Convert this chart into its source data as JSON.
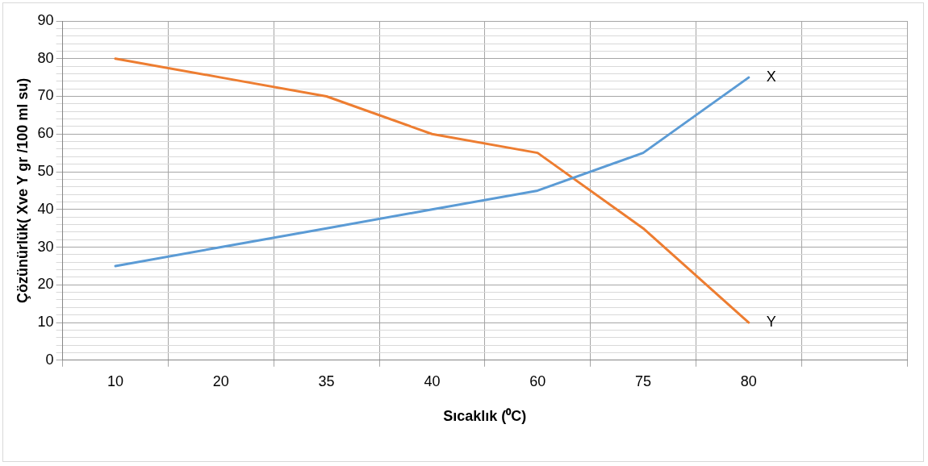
{
  "chart_data": {
    "type": "line",
    "xlabel": "Sıcaklık (⁰C)",
    "ylabel": "Çözünürlük( Xve Y gr /100 ml su)",
    "categories": [
      "10",
      "20",
      "35",
      "40",
      "60",
      "75",
      "80",
      null
    ],
    "series": [
      {
        "name": "X",
        "color": "#5b9bd5",
        "values": [
          25,
          30,
          35,
          40,
          45,
          55,
          75,
          null
        ]
      },
      {
        "name": "Y",
        "color": "#ed7d31",
        "values": [
          80,
          75,
          70,
          60,
          55,
          35,
          10,
          null
        ]
      }
    ],
    "ylim": [
      0,
      90
    ],
    "yticks": [
      0,
      {
        "value": 2,
        "label": null
      },
      {
        "value": 4,
        "label": null
      },
      {
        "value": 6,
        "label": null
      },
      {
        "value": 8,
        "label": null
      },
      10,
      {
        "value": 12,
        "label": null
      },
      {
        "value": 14,
        "label": null
      },
      {
        "value": 16,
        "label": null
      },
      {
        "value": 18,
        "label": null
      },
      20,
      {
        "value": 22,
        "label": null
      },
      {
        "value": 24,
        "label": null
      },
      {
        "value": 26,
        "label": null
      },
      {
        "value": 28,
        "label": null
      },
      30,
      {
        "value": 32,
        "label": null
      },
      {
        "value": 34,
        "label": null
      },
      {
        "value": 36,
        "label": null
      },
      {
        "value": 38,
        "label": null
      },
      40,
      {
        "value": 42,
        "label": null
      },
      {
        "value": 44,
        "label": null
      },
      {
        "value": 46,
        "label": null
      },
      {
        "value": 48,
        "label": null
      },
      50,
      {
        "value": 52,
        "label": null
      },
      {
        "value": 54,
        "label": null
      },
      {
        "value": 56,
        "label": null
      },
      {
        "value": 58,
        "label": null
      },
      60,
      {
        "value": 62,
        "label": null
      },
      {
        "value": 64,
        "label": null
      },
      {
        "value": 66,
        "label": null
      },
      {
        "value": 68,
        "label": null
      },
      70,
      {
        "value": 72,
        "label": null
      },
      {
        "value": 74,
        "label": null
      },
      {
        "value": 76,
        "label": null
      },
      {
        "value": 78,
        "label": null
      },
      80,
      {
        "value": 82,
        "label": null
      },
      {
        "value": 84,
        "label": null
      },
      {
        "value": 86,
        "label": null
      },
      {
        "value": 88,
        "label": null
      },
      90
    ],
    "grid": true,
    "legend": false,
    "marker": "none",
    "line_style": "solid"
  }
}
